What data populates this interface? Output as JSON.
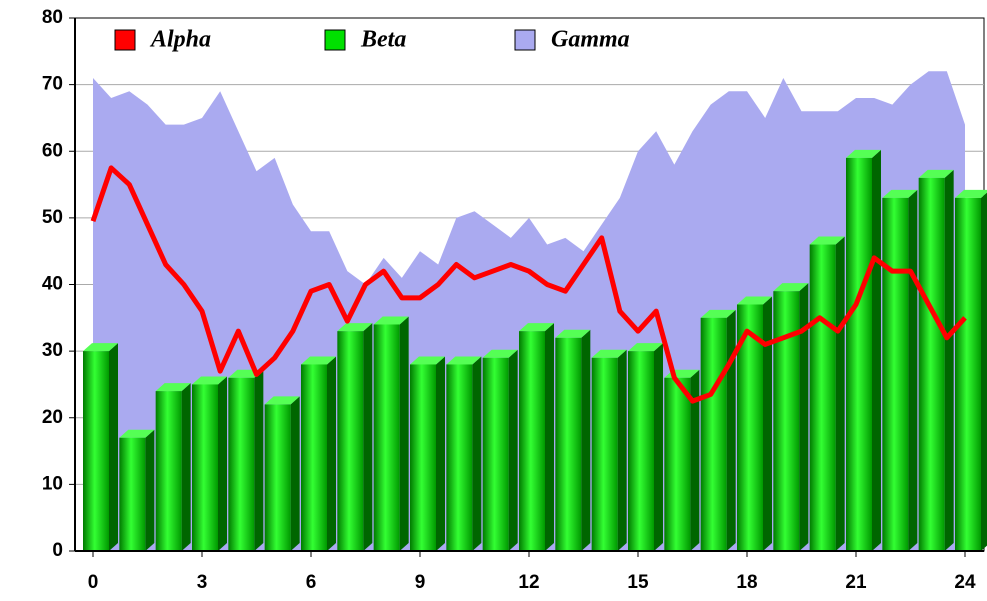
{
  "chart_data": {
    "type": "combo",
    "xlim": [
      0,
      24
    ],
    "xticks": [
      0,
      3,
      6,
      9,
      12,
      15,
      18,
      21,
      24
    ],
    "ylim": [
      0,
      80
    ],
    "yticks": [
      0,
      10,
      20,
      30,
      40,
      50,
      60,
      70,
      80
    ],
    "grid": true,
    "legend": "top-left",
    "series": [
      {
        "name": "Alpha",
        "type": "line",
        "color": "#ff0000",
        "x": [
          0,
          0.5,
          1,
          1.5,
          2,
          2.5,
          3,
          3.5,
          4,
          4.5,
          5,
          5.5,
          6,
          6.5,
          7,
          7.5,
          8,
          8.5,
          9,
          9.5,
          10,
          10.5,
          11,
          11.5,
          12,
          12.5,
          13,
          13.5,
          14,
          14.5,
          15,
          15.5,
          16,
          16.5,
          17,
          17.5,
          18,
          18.5,
          19,
          19.5,
          20,
          20.5,
          21,
          21.5,
          22,
          22.5,
          23,
          23.5,
          24
        ],
        "values": [
          49.5,
          57.5,
          55,
          49,
          43,
          40,
          36,
          27,
          33,
          26.5,
          29,
          33,
          39,
          40,
          34.5,
          40,
          42,
          38,
          38,
          40,
          43,
          41,
          42,
          43,
          42,
          40,
          39,
          43,
          47,
          36,
          33,
          36,
          26,
          22.5,
          23.5,
          28,
          33,
          31,
          32,
          33,
          35,
          33,
          37,
          44,
          42,
          42,
          37,
          32,
          35
        ]
      },
      {
        "name": "Beta",
        "type": "bar3d",
        "color": "#00e000",
        "x": [
          0,
          1,
          2,
          3,
          4,
          5,
          6,
          7,
          8,
          9,
          10,
          11,
          12,
          13,
          14,
          15,
          16,
          17,
          18,
          19,
          20,
          21,
          22,
          23,
          24
        ],
        "values": [
          30,
          17,
          24,
          25,
          26,
          22,
          28,
          33,
          34,
          28,
          28,
          29,
          33,
          32,
          29,
          30,
          26,
          35,
          37,
          39,
          46,
          59,
          53,
          56,
          53
        ]
      },
      {
        "name": "Gamma",
        "type": "area",
        "color": "#aaaaf0",
        "x": [
          0,
          0.5,
          1,
          1.5,
          2,
          2.5,
          3,
          3.5,
          4,
          4.5,
          5,
          5.5,
          6,
          6.5,
          7,
          7.5,
          8,
          8.5,
          9,
          9.5,
          10,
          10.5,
          11,
          11.5,
          12,
          12.5,
          13,
          13.5,
          14,
          14.5,
          15,
          15.5,
          16,
          16.5,
          17,
          17.5,
          18,
          18.5,
          19,
          19.5,
          20,
          20.5,
          21,
          21.5,
          22,
          22.5,
          23,
          23.5,
          24
        ],
        "values": [
          71,
          68,
          69,
          67,
          64,
          64,
          65,
          69,
          63,
          57,
          59,
          52,
          48,
          48,
          42,
          40,
          44,
          41,
          45,
          43,
          50,
          51,
          49,
          47,
          50,
          46,
          47,
          45,
          49,
          53,
          60,
          63,
          58,
          63,
          67,
          69,
          69,
          65,
          71,
          66,
          66,
          66,
          68,
          68,
          67,
          70,
          72,
          72,
          64
        ]
      }
    ]
  }
}
